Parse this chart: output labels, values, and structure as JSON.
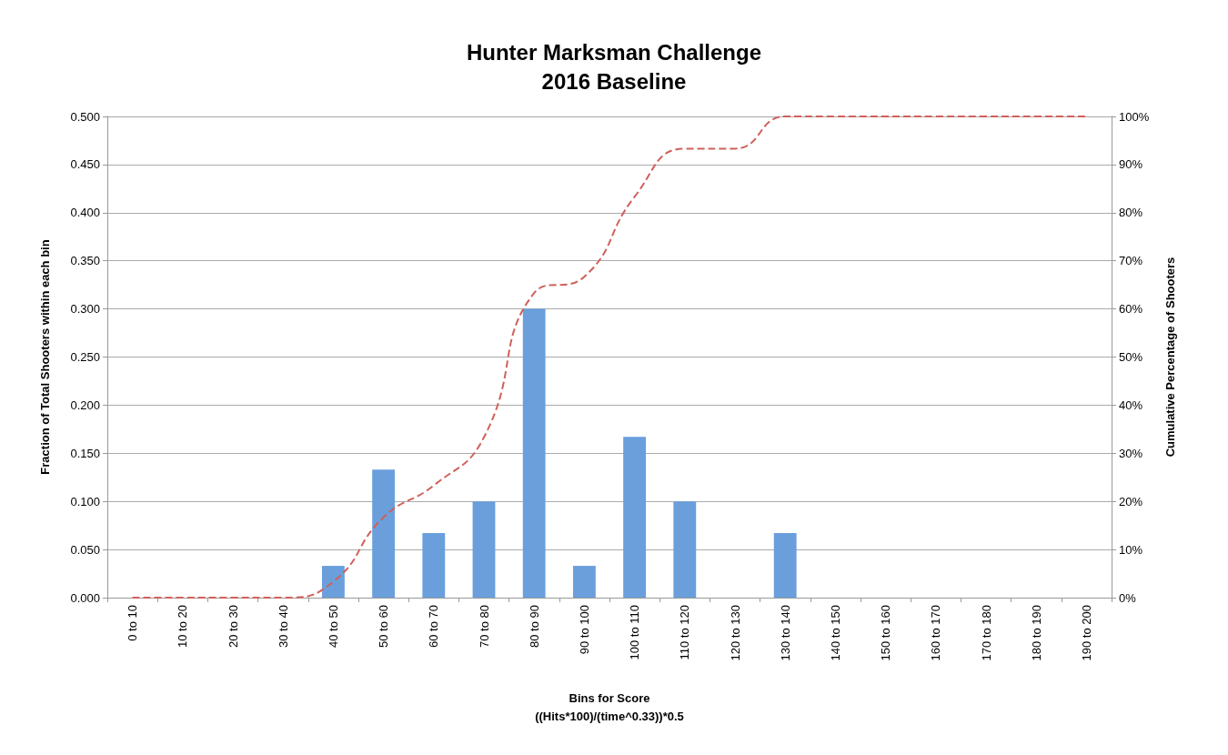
{
  "chart_data": {
    "type": "bar",
    "title": "Hunter Marksman Challenge\n2016 Baseline",
    "xlabel": "Bins for Score\n((Hits*100)/(time^0.33))*0.5",
    "ylabel": "Fraction of Total Shooters within each bin",
    "y2label": "Cumulative Percentage of Shooters",
    "categories": [
      "0 to 10",
      "10 to 20",
      "20 to 30",
      "30 to 40",
      "40 to 50",
      "50 to 60",
      "60 to 70",
      "70 to 80",
      "80 to 90",
      "90 to 100",
      "100 to 110",
      "110 to 120",
      "120 to 130",
      "130 to 140",
      "140 to 150",
      "150 to 160",
      "160 to 170",
      "170 to 180",
      "180 to 190",
      "190 to 200"
    ],
    "series": [
      {
        "color": "#6a9fdc",
        "values": [
          0,
          0,
          0,
          0,
          0.033,
          0.133,
          0.067,
          0.1,
          0.3,
          0.033,
          0.167,
          0.1,
          0,
          0.067,
          0,
          0,
          0,
          0,
          0,
          0
        ]
      },
      {
        "type": "line",
        "axis": "y2",
        "color": "#d0605a",
        "line_style": "dashed",
        "marker": "none",
        "values": [
          0,
          0,
          0,
          0,
          3.3,
          16.7,
          23.3,
          33.3,
          63.3,
          66.7,
          83.3,
          93.3,
          93.3,
          100,
          100,
          100,
          100,
          100,
          100,
          100
        ]
      }
    ],
    "ylim": [
      0,
      0.5
    ],
    "yticks": [
      {
        "value": 0,
        "label": "0.000"
      },
      {
        "value": 0.05,
        "label": "0.050"
      },
      {
        "value": 0.1,
        "label": "0.100"
      },
      {
        "value": 0.15,
        "label": "0.150"
      },
      {
        "value": 0.2,
        "label": "0.200"
      },
      {
        "value": 0.25,
        "label": "0.250"
      },
      {
        "value": 0.3,
        "label": "0.300"
      },
      {
        "value": 0.35,
        "label": "0.350"
      },
      {
        "value": 0.4,
        "label": "0.400"
      },
      {
        "value": 0.45,
        "label": "0.450"
      },
      {
        "value": 0.5,
        "label": "0.500"
      }
    ],
    "y2lim": [
      0,
      100
    ],
    "y2ticks": [
      {
        "value": 0,
        "label": "0%"
      },
      {
        "value": 10,
        "label": "10%"
      },
      {
        "value": 20,
        "label": "20%"
      },
      {
        "value": 30,
        "label": "30%"
      },
      {
        "value": 40,
        "label": "40%"
      },
      {
        "value": 50,
        "label": "50%"
      },
      {
        "value": 60,
        "label": "60%"
      },
      {
        "value": 70,
        "label": "70%"
      },
      {
        "value": 80,
        "label": "80%"
      },
      {
        "value": 90,
        "label": "90%"
      },
      {
        "value": 100,
        "label": "100%"
      }
    ],
    "grid": "y"
  }
}
